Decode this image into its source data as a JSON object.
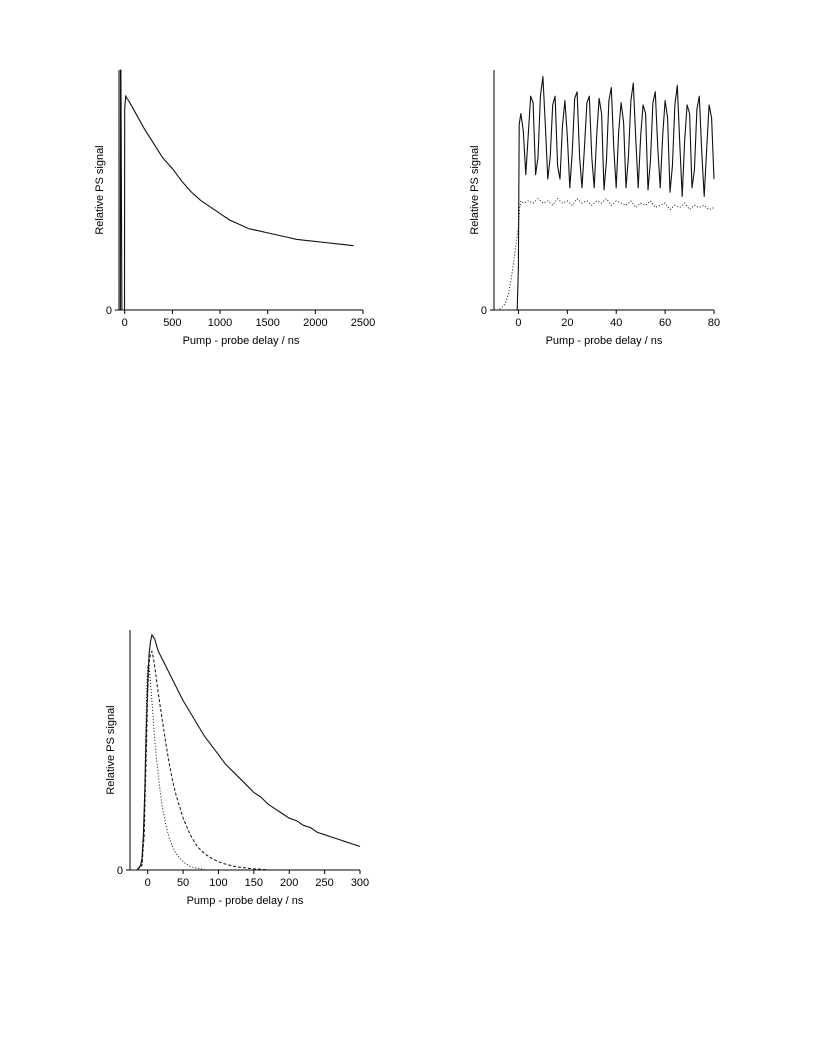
{
  "chart_data": [
    {
      "type": "line",
      "xlabel": "Pump - probe delay / ns",
      "ylabel": "Relative PS signal",
      "xlim": [
        -60,
        2500
      ],
      "ylim": [
        0,
        1.12
      ],
      "xticks": [
        0,
        500,
        1000,
        1500,
        2000,
        2500
      ],
      "yticks": [
        0
      ],
      "grid": false,
      "legend": "none",
      "series": [
        {
          "style": "solid",
          "x": [
            -50,
            -45,
            -44,
            -40,
            -30,
            -20,
            -10,
            -2,
            0,
            10,
            20,
            50,
            100,
            200,
            300,
            400,
            500,
            600,
            700,
            800,
            900,
            1000,
            1100,
            1200,
            1300,
            1400,
            1500,
            1600,
            1700,
            1800,
            1900,
            2000,
            2100,
            2200,
            2300,
            2400
          ],
          "y": [
            0,
            0,
            1.12,
            1.12,
            0,
            0,
            0,
            0,
            0.94,
            1.0,
            0.99,
            0.97,
            0.93,
            0.85,
            0.78,
            0.71,
            0.66,
            0.6,
            0.55,
            0.51,
            0.48,
            0.45,
            0.42,
            0.4,
            0.38,
            0.37,
            0.36,
            0.35,
            0.34,
            0.33,
            0.325,
            0.32,
            0.315,
            0.31,
            0.305,
            0.3
          ]
        }
      ]
    },
    {
      "type": "line",
      "xlabel": "Pump - probe delay / ns",
      "ylabel": "Relative PS signal",
      "xlim": [
        -10,
        80
      ],
      "ylim": [
        0,
        1.1
      ],
      "xticks": [
        0,
        20,
        40,
        60,
        80
      ],
      "yticks": [
        0
      ],
      "grid": false,
      "legend": "none",
      "series": [
        {
          "style": "solid",
          "x": [
            -10,
            -0.5,
            0,
            0.3,
            1,
            2,
            3,
            4,
            5,
            6,
            7,
            8,
            9,
            10,
            11,
            12,
            13,
            14,
            15,
            16,
            17,
            18,
            19,
            20,
            21,
            22,
            23,
            24,
            25,
            26,
            27,
            28,
            29,
            30,
            31,
            32,
            33,
            34,
            35,
            36,
            37,
            38,
            39,
            40,
            41,
            42,
            43,
            44,
            45,
            46,
            47,
            48,
            49,
            50,
            51,
            52,
            53,
            54,
            55,
            56,
            57,
            58,
            59,
            60,
            61,
            62,
            63,
            64,
            65,
            66,
            67,
            68,
            69,
            70,
            71,
            72,
            73,
            74,
            75,
            76,
            77,
            78,
            79,
            80
          ],
          "y": [
            0,
            0,
            0.2,
            0.85,
            0.9,
            0.82,
            0.62,
            0.8,
            0.98,
            0.95,
            0.62,
            0.7,
            0.98,
            1.07,
            0.85,
            0.6,
            0.7,
            0.94,
            0.98,
            0.66,
            0.6,
            0.84,
            0.96,
            0.8,
            0.56,
            0.72,
            0.97,
            1.0,
            0.7,
            0.56,
            0.74,
            0.95,
            0.98,
            0.7,
            0.56,
            0.8,
            0.97,
            0.9,
            0.55,
            0.68,
            0.96,
            1.02,
            0.74,
            0.56,
            0.82,
            0.95,
            0.86,
            0.56,
            0.7,
            0.96,
            1.04,
            0.78,
            0.56,
            0.8,
            0.94,
            0.9,
            0.55,
            0.68,
            0.95,
            1.0,
            0.74,
            0.56,
            0.8,
            0.96,
            0.88,
            0.54,
            0.66,
            0.94,
            1.03,
            0.76,
            0.52,
            0.78,
            0.94,
            0.9,
            0.56,
            0.64,
            0.92,
            0.98,
            0.72,
            0.52,
            0.74,
            0.94,
            0.88,
            0.6
          ]
        },
        {
          "style": "dotted",
          "x": [
            -10,
            -8,
            -6,
            -5,
            -4,
            -3,
            -2,
            -1,
            0,
            0.5,
            1,
            2,
            4,
            6,
            8,
            10,
            12,
            14,
            16,
            18,
            20,
            22,
            24,
            26,
            28,
            30,
            32,
            34,
            36,
            38,
            40,
            42,
            44,
            46,
            48,
            50,
            52,
            54,
            56,
            58,
            60,
            62,
            64,
            66,
            68,
            70,
            72,
            74,
            76,
            78,
            80
          ],
          "y": [
            0,
            0,
            0.02,
            0.04,
            0.08,
            0.14,
            0.22,
            0.3,
            0.38,
            0.47,
            0.5,
            0.49,
            0.5,
            0.49,
            0.51,
            0.49,
            0.5,
            0.48,
            0.51,
            0.49,
            0.5,
            0.48,
            0.51,
            0.49,
            0.5,
            0.48,
            0.5,
            0.49,
            0.51,
            0.48,
            0.5,
            0.49,
            0.48,
            0.5,
            0.47,
            0.49,
            0.48,
            0.5,
            0.47,
            0.48,
            0.49,
            0.46,
            0.48,
            0.47,
            0.49,
            0.46,
            0.48,
            0.47,
            0.48,
            0.46,
            0.47
          ]
        }
      ]
    },
    {
      "type": "line",
      "xlabel": "Pump - probe delay / ns",
      "ylabel": "Relative PS signal",
      "xlim": [
        -25,
        300
      ],
      "ylim": [
        0,
        1.02
      ],
      "xticks": [
        0,
        50,
        100,
        150,
        200,
        250,
        300
      ],
      "yticks": [
        0
      ],
      "grid": false,
      "legend": "none",
      "series": [
        {
          "style": "solid",
          "x": [
            -25,
            -15,
            -10,
            -8,
            -6,
            -4,
            -2,
            0,
            2,
            4,
            6,
            8,
            10,
            12,
            15,
            20,
            25,
            30,
            40,
            50,
            60,
            70,
            80,
            90,
            100,
            110,
            120,
            130,
            140,
            150,
            160,
            170,
            180,
            190,
            200,
            210,
            220,
            230,
            240,
            250,
            260,
            270,
            280,
            290,
            300
          ],
          "y": [
            0,
            0,
            0.02,
            0.05,
            0.15,
            0.35,
            0.6,
            0.8,
            0.92,
            0.97,
            1.0,
            0.99,
            0.98,
            0.96,
            0.93,
            0.9,
            0.87,
            0.84,
            0.78,
            0.72,
            0.67,
            0.62,
            0.57,
            0.53,
            0.49,
            0.45,
            0.42,
            0.39,
            0.36,
            0.33,
            0.31,
            0.28,
            0.26,
            0.24,
            0.22,
            0.21,
            0.19,
            0.18,
            0.16,
            0.15,
            0.14,
            0.13,
            0.12,
            0.11,
            0.1
          ]
        },
        {
          "style": "dashed",
          "x": [
            -15,
            -8,
            -5,
            -2,
            0,
            2,
            4,
            6,
            8,
            10,
            12,
            15,
            20,
            25,
            30,
            35,
            40,
            50,
            60,
            70,
            80,
            90,
            100,
            110,
            120,
            130,
            140,
            150,
            160,
            170
          ],
          "y": [
            0,
            0.02,
            0.15,
            0.5,
            0.75,
            0.88,
            0.92,
            0.93,
            0.9,
            0.86,
            0.82,
            0.75,
            0.65,
            0.55,
            0.46,
            0.38,
            0.32,
            0.22,
            0.15,
            0.1,
            0.07,
            0.05,
            0.035,
            0.025,
            0.017,
            0.012,
            0.008,
            0.005,
            0.003,
            0.001
          ]
        },
        {
          "style": "dotted",
          "x": [
            -15,
            -8,
            -5,
            -3,
            -1,
            0,
            2,
            4,
            6,
            8,
            10,
            15,
            20,
            25,
            30,
            35,
            40,
            50,
            60,
            70,
            80
          ],
          "y": [
            0,
            0.02,
            0.2,
            0.55,
            0.8,
            0.87,
            0.86,
            0.8,
            0.72,
            0.63,
            0.55,
            0.4,
            0.28,
            0.2,
            0.14,
            0.1,
            0.07,
            0.035,
            0.015,
            0.007,
            0.003
          ]
        }
      ]
    }
  ]
}
